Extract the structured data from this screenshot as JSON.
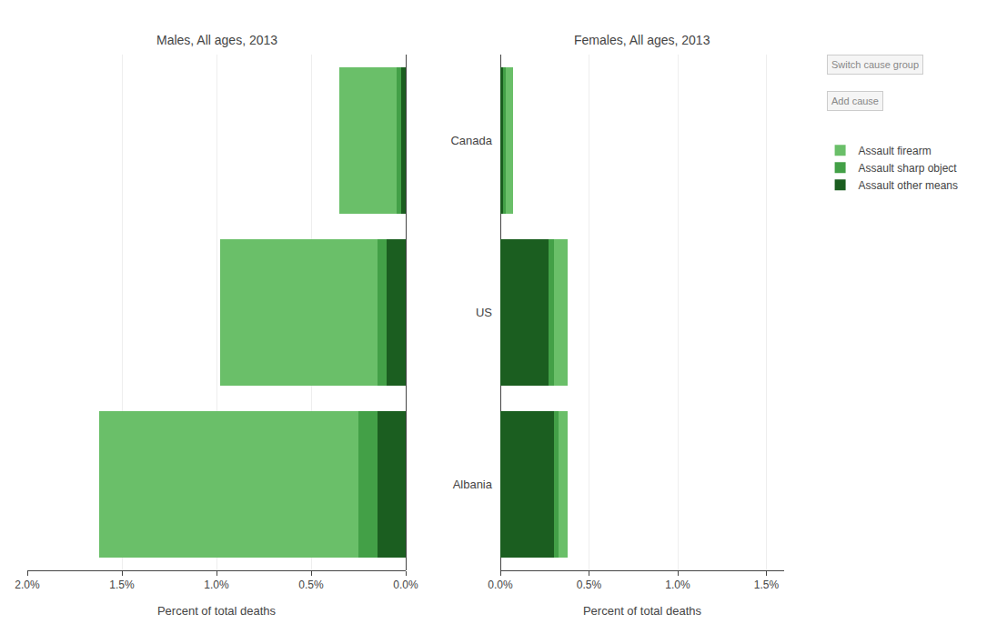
{
  "chart_data": [
    {
      "type": "bar",
      "orientation": "horizontal",
      "stacked": true,
      "title": "Males, All ages, 2013",
      "xlabel": "Percent of total deaths",
      "categories": [
        "Canada",
        "US",
        "Albania"
      ],
      "series": [
        {
          "name": "Assault firearm",
          "color": "#6abf69",
          "values": [
            0.3,
            0.83,
            1.37
          ]
        },
        {
          "name": "Assault sharp object",
          "color": "#43a047",
          "values": [
            0.025,
            0.05,
            0.1
          ]
        },
        {
          "name": "Assault other means",
          "color": "#1b5e20",
          "values": [
            0.025,
            0.1,
            0.15
          ]
        }
      ],
      "xlim": [
        2.0,
        0.0
      ],
      "xticks": [
        {
          "value": 2.0,
          "label": "2.0%"
        },
        {
          "value": 1.5,
          "label": "1.5%"
        },
        {
          "value": 1.0,
          "label": "1.0%"
        },
        {
          "value": 0.5,
          "label": "0.5%"
        },
        {
          "value": 0.0,
          "label": "0.0%"
        }
      ],
      "grid": true,
      "legend": "right",
      "tick_labels": "x",
      "annotations": [
        "Switch cause group",
        "Add cause"
      ]
    },
    {
      "type": "bar",
      "orientation": "horizontal",
      "stacked": true,
      "title": "Females, All ages, 2013",
      "xlabel": "Percent of total deaths",
      "categories": [
        "Canada",
        "US",
        "Albania"
      ],
      "series": [
        {
          "name": "Assault firearm",
          "color": "#6abf69",
          "values": [
            0.04,
            0.08,
            0.05
          ]
        },
        {
          "name": "Assault sharp object",
          "color": "#43a047",
          "values": [
            0.015,
            0.03,
            0.03
          ]
        },
        {
          "name": "Assault other means",
          "color": "#1b5e20",
          "values": [
            0.015,
            0.27,
            0.3
          ]
        }
      ],
      "xlim": [
        0.0,
        1.6
      ],
      "xticks": [
        {
          "value": 0.0,
          "label": "0.0%"
        },
        {
          "value": 0.5,
          "label": "0.5%"
        },
        {
          "value": 1.0,
          "label": "1.0%"
        },
        {
          "value": 1.5,
          "label": "1.5%"
        }
      ],
      "grid": true
    }
  ]
}
